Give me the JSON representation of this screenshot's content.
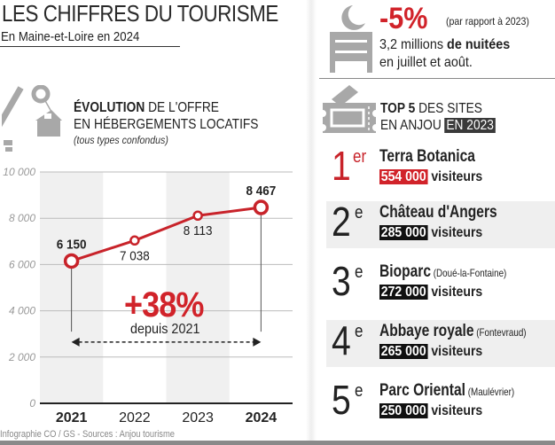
{
  "header": {
    "title": "LES CHIFFRES DU TOURISME",
    "subtitle": "En Maine-et-Loire en 2024"
  },
  "offer_section": {
    "heading_bold": "ÉVOLUTION",
    "heading_rest": " DE L'OFFRE",
    "heading_line2": "EN HÉBERGEMENTS LOCATIFS",
    "subheading": "(tous types confondus)",
    "growth_value": "+38%",
    "growth_label": "depuis 2021",
    "icon": "key-house-icon"
  },
  "chart_data": {
    "type": "line",
    "title": "ÉVOLUTION DE L'OFFRE EN HÉBERGEMENTS LOCATIFS",
    "categories": [
      "2021",
      "2022",
      "2023",
      "2024"
    ],
    "values": [
      6150,
      7038,
      8113,
      8467
    ],
    "value_labels": [
      "6 150",
      "7 038",
      "8 113",
      "8 467"
    ],
    "ylim": [
      0,
      10000
    ],
    "yticks": [
      0,
      2000,
      4000,
      6000,
      8000,
      10000
    ],
    "ytick_labels": [
      "0",
      "2 000",
      "4 000",
      "6 000",
      "8 000",
      "10 000"
    ],
    "grid": true,
    "line_color": "#c8232a",
    "annotation": "+38% depuis 2021"
  },
  "nights": {
    "icon": "bed-moon-icon",
    "pct": "-5%",
    "comparison": "(par rapport à 2023)",
    "line1_normal": "3,2 millions ",
    "line1_bold": "de nuitées",
    "line2": "en juillet et août."
  },
  "top5": {
    "icon": "ticket-icon",
    "heading_bold": "TOP 5",
    "heading_rest": " DES SITES",
    "heading_line2": "EN ANJOU ",
    "heading_badge": "EN 2023",
    "items": [
      {
        "rank": "1",
        "suffix": "er",
        "name": "Terra Botanica",
        "place": "",
        "visitors": "554 000",
        "unit": " visiteurs"
      },
      {
        "rank": "2",
        "suffix": "e",
        "name": "Château d'Angers",
        "place": "",
        "visitors": "285 000",
        "unit": " visiteurs"
      },
      {
        "rank": "3",
        "suffix": "e",
        "name": "Bioparc",
        "place": " (Doué-la-Fontaine)",
        "visitors": "272 000",
        "unit": " visiteurs"
      },
      {
        "rank": "4",
        "suffix": "e",
        "name": "Abbaye royale",
        "place": " (Fontevraud)",
        "visitors": "265 000",
        "unit": " visiteurs"
      },
      {
        "rank": "5",
        "suffix": "e",
        "name": "Parc Oriental",
        "place": " (Maulévrier)",
        "visitors": "250 000",
        "unit": " visiteurs"
      }
    ]
  },
  "footer": {
    "credit": "Infographie CO / GS - Sources : Anjou tourisme"
  },
  "colors": {
    "accent_red": "#d1232a",
    "icon_gray": "#a8a8a8"
  }
}
